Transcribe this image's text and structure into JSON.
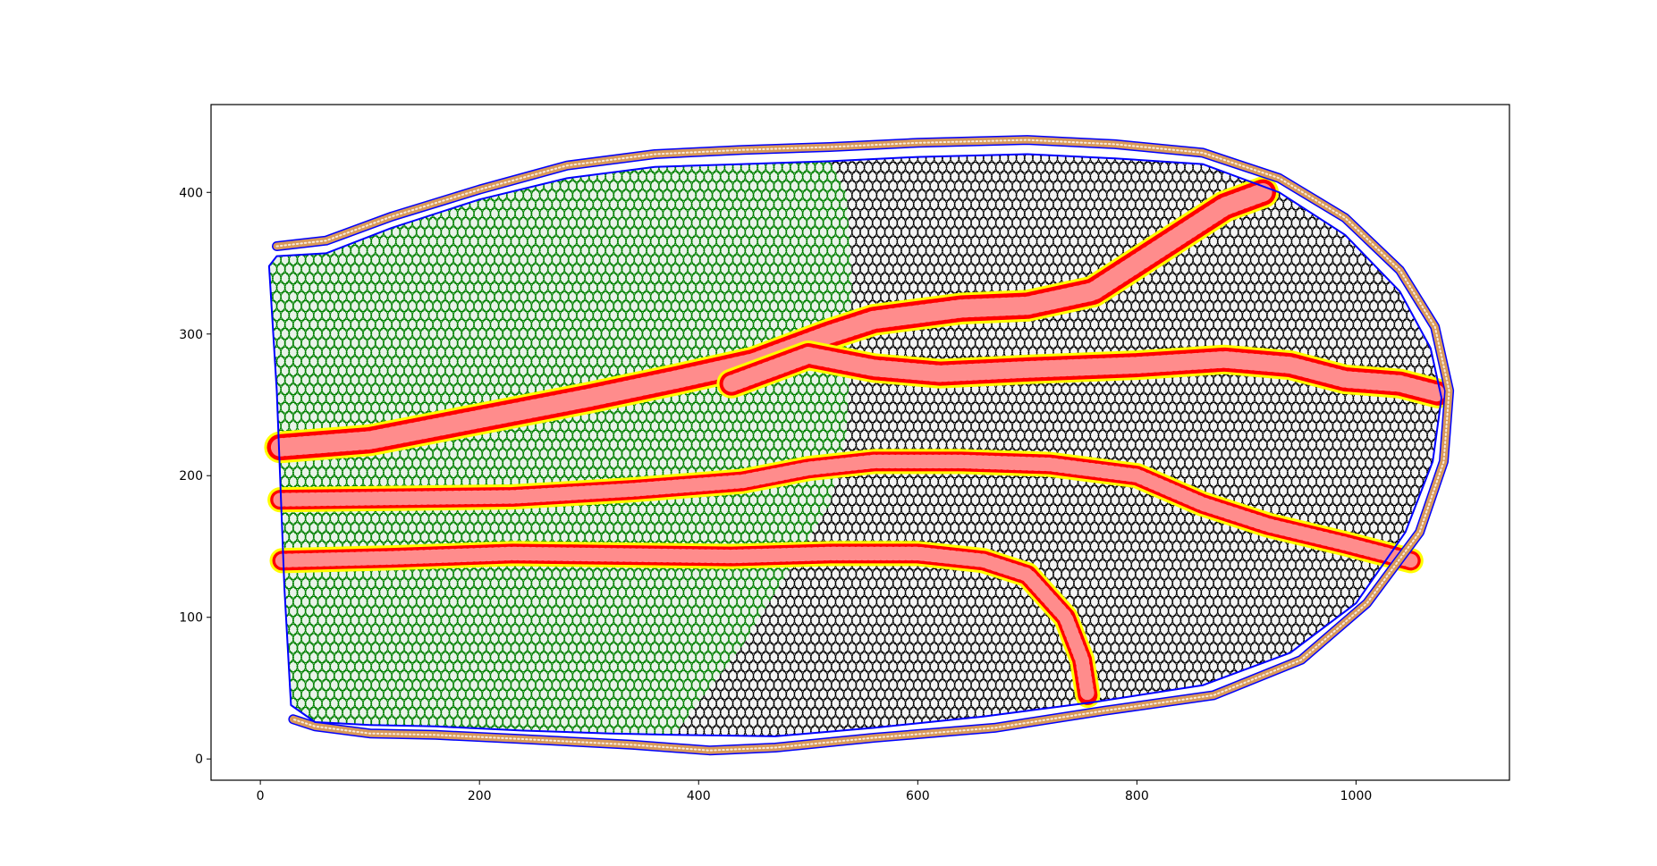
{
  "chart_data": {
    "type": "scatter",
    "title": "",
    "xlabel": "",
    "ylabel": "",
    "xlim": [
      -45,
      1140
    ],
    "ylim": [
      -15,
      462
    ],
    "x_ticks": [
      0,
      200,
      400,
      600,
      800,
      1000
    ],
    "y_ticks": [
      0,
      100,
      200,
      300,
      400
    ],
    "x_tick_labels": [
      "0",
      "200",
      "400",
      "600",
      "800",
      "1000"
    ],
    "y_tick_labels": [
      "0",
      "100",
      "200",
      "300",
      "400"
    ],
    "grid": false,
    "legend": "none",
    "colors": {
      "region_left": "#008000",
      "region_right": "#000000",
      "vessel": "#ff0000",
      "vessel_border": "#ffff00",
      "outer_boundary": "#0000ff",
      "outer_layer": "#d99a5a"
    },
    "regions": [
      {
        "name": "green-tissue",
        "polygon": [
          [
            8,
            348
          ],
          [
            15,
            355
          ],
          [
            60,
            357
          ],
          [
            120,
            375
          ],
          [
            200,
            395
          ],
          [
            280,
            410
          ],
          [
            360,
            418
          ],
          [
            440,
            420
          ],
          [
            520,
            422
          ],
          [
            535,
            400
          ],
          [
            540,
            340
          ],
          [
            538,
            280
          ],
          [
            535,
            230
          ],
          [
            520,
            180
          ],
          [
            480,
            130
          ],
          [
            440,
            80
          ],
          [
            400,
            40
          ],
          [
            378,
            17
          ],
          [
            320,
            18
          ],
          [
            240,
            20
          ],
          [
            160,
            23
          ],
          [
            100,
            24
          ],
          [
            50,
            26
          ],
          [
            28,
            38
          ],
          [
            22,
            120
          ],
          [
            15,
            260
          ]
        ]
      },
      {
        "name": "black-tissue",
        "polygon": [
          [
            520,
            422
          ],
          [
            600,
            425
          ],
          [
            700,
            427
          ],
          [
            780,
            424
          ],
          [
            860,
            420
          ],
          [
            930,
            400
          ],
          [
            990,
            370
          ],
          [
            1040,
            330
          ],
          [
            1068,
            290
          ],
          [
            1078,
            255
          ],
          [
            1070,
            210
          ],
          [
            1045,
            160
          ],
          [
            1000,
            110
          ],
          [
            940,
            75
          ],
          [
            860,
            52
          ],
          [
            760,
            40
          ],
          [
            660,
            30
          ],
          [
            560,
            22
          ],
          [
            470,
            16
          ],
          [
            378,
            17
          ],
          [
            400,
            40
          ],
          [
            440,
            80
          ],
          [
            480,
            130
          ],
          [
            520,
            180
          ],
          [
            535,
            230
          ],
          [
            538,
            280
          ],
          [
            540,
            340
          ],
          [
            535,
            400
          ]
        ]
      }
    ],
    "vessels": [
      {
        "name": "vessel-1",
        "width": 24,
        "path": [
          [
            18,
            220
          ],
          [
            100,
            225
          ],
          [
            200,
            240
          ],
          [
            300,
            255
          ],
          [
            380,
            268
          ],
          [
            450,
            280
          ],
          [
            520,
            300
          ],
          [
            560,
            310
          ],
          [
            640,
            318
          ],
          [
            700,
            320
          ],
          [
            760,
            330
          ],
          [
            820,
            360
          ],
          [
            880,
            390
          ],
          [
            915,
            400
          ]
        ]
      },
      {
        "name": "vessel-2",
        "width": 22,
        "path": [
          [
            430,
            265
          ],
          [
            500,
            285
          ],
          [
            560,
            276
          ],
          [
            620,
            272
          ],
          [
            700,
            275
          ],
          [
            800,
            278
          ],
          [
            880,
            282
          ],
          [
            940,
            278
          ],
          [
            990,
            268
          ],
          [
            1040,
            265
          ],
          [
            1075,
            258
          ]
        ]
      },
      {
        "name": "vessel-3",
        "width": 18,
        "path": [
          [
            18,
            183
          ],
          [
            120,
            184
          ],
          [
            230,
            185
          ],
          [
            340,
            190
          ],
          [
            440,
            196
          ],
          [
            500,
            205
          ],
          [
            560,
            210
          ],
          [
            640,
            210
          ],
          [
            720,
            208
          ],
          [
            800,
            200
          ],
          [
            860,
            180
          ],
          [
            920,
            165
          ],
          [
            990,
            152
          ],
          [
            1050,
            140
          ]
        ]
      },
      {
        "name": "vessel-4",
        "width": 18,
        "path": [
          [
            20,
            140
          ],
          [
            120,
            142
          ],
          [
            230,
            145
          ],
          [
            330,
            144
          ],
          [
            430,
            143
          ],
          [
            520,
            145
          ],
          [
            600,
            145
          ],
          [
            660,
            140
          ],
          [
            700,
            130
          ],
          [
            735,
            100
          ],
          [
            750,
            70
          ],
          [
            755,
            45
          ]
        ]
      }
    ],
    "boundary": [
      [
        8,
        348
      ],
      [
        15,
        355
      ],
      [
        60,
        357
      ],
      [
        120,
        375
      ],
      [
        200,
        395
      ],
      [
        280,
        410
      ],
      [
        360,
        418
      ],
      [
        440,
        420
      ],
      [
        520,
        422
      ],
      [
        600,
        425
      ],
      [
        700,
        427
      ],
      [
        780,
        424
      ],
      [
        860,
        420
      ],
      [
        930,
        400
      ],
      [
        990,
        370
      ],
      [
        1040,
        330
      ],
      [
        1068,
        290
      ],
      [
        1078,
        255
      ],
      [
        1070,
        210
      ],
      [
        1045,
        160
      ],
      [
        1000,
        110
      ],
      [
        940,
        75
      ],
      [
        860,
        52
      ],
      [
        760,
        40
      ],
      [
        660,
        30
      ],
      [
        560,
        22
      ],
      [
        470,
        16
      ],
      [
        378,
        17
      ],
      [
        320,
        18
      ],
      [
        240,
        20
      ],
      [
        160,
        23
      ],
      [
        100,
        24
      ],
      [
        50,
        26
      ],
      [
        28,
        38
      ],
      [
        22,
        120
      ],
      [
        15,
        260
      ]
    ],
    "outer_layer_top": [
      [
        15,
        362
      ],
      [
        60,
        366
      ],
      [
        120,
        383
      ],
      [
        200,
        402
      ],
      [
        280,
        419
      ],
      [
        360,
        427
      ],
      [
        440,
        430
      ],
      [
        520,
        432
      ],
      [
        600,
        435
      ],
      [
        700,
        437
      ],
      [
        780,
        434
      ],
      [
        860,
        428
      ],
      [
        930,
        410
      ],
      [
        990,
        382
      ],
      [
        1040,
        345
      ],
      [
        1072,
        305
      ],
      [
        1085,
        260
      ]
    ],
    "outer_layer_bottom": [
      [
        1085,
        260
      ],
      [
        1080,
        210
      ],
      [
        1058,
        160
      ],
      [
        1010,
        110
      ],
      [
        950,
        70
      ],
      [
        870,
        45
      ],
      [
        770,
        34
      ],
      [
        670,
        22
      ],
      [
        560,
        15
      ],
      [
        470,
        8
      ],
      [
        410,
        6
      ],
      [
        340,
        10
      ],
      [
        240,
        14
      ],
      [
        160,
        17
      ],
      [
        100,
        18
      ],
      [
        50,
        23
      ],
      [
        30,
        28
      ]
    ],
    "cell_spacing": 7.5
  }
}
